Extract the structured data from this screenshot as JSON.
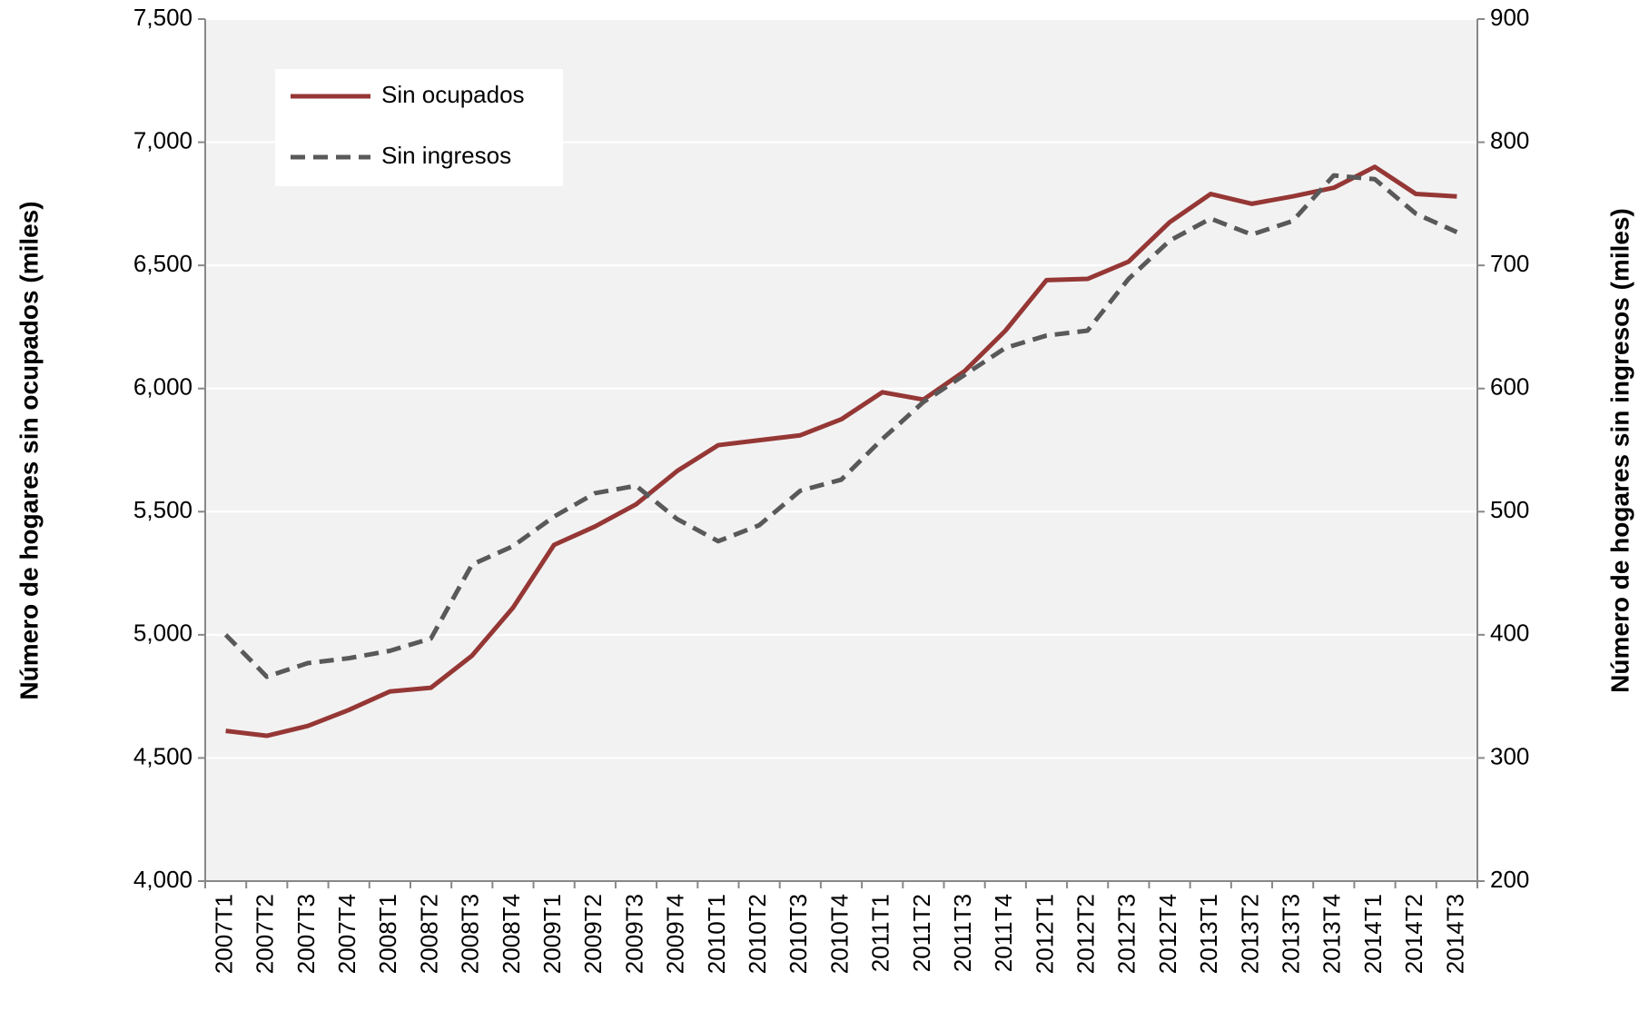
{
  "chart_data": {
    "type": "line",
    "categories": [
      "2007T1",
      "2007T2",
      "2007T3",
      "2007T4",
      "2008T1",
      "2008T2",
      "2008T3",
      "2008T4",
      "2009T1",
      "2009T2",
      "2009T3",
      "2009T4",
      "2010T1",
      "2010T2",
      "2010T3",
      "2010T4",
      "2011T1",
      "2011T2",
      "2011T3",
      "2011T4",
      "2012T1",
      "2012T2",
      "2012T3",
      "2012T4",
      "2013T1",
      "2013T2",
      "2013T3",
      "2013T4",
      "2014T1",
      "2014T2",
      "2014T3"
    ],
    "series": [
      {
        "name": "Sin ocupados",
        "color": "#953735",
        "dash": false,
        "values": [
          4610,
          4590,
          4630,
          4695,
          4770,
          4785,
          4915,
          5110,
          5365,
          5440,
          5530,
          5665,
          5770,
          5790,
          5810,
          5875,
          5985,
          5955,
          6070,
          6235,
          6440,
          6445,
          6515,
          6675,
          6790,
          6750,
          6780,
          6815,
          6900,
          6790,
          6780
        ]
      },
      {
        "name": "Sin ingresos",
        "color": "#595959",
        "dash": true,
        "axis": "y2",
        "values": [
          400,
          366,
          377,
          381,
          387,
          397,
          457,
          472,
          496,
          515,
          521,
          494,
          476,
          489,
          517,
          526,
          559,
          589,
          611,
          633,
          643,
          647,
          689,
          720,
          738,
          725,
          736,
          773,
          770,
          742,
          727
        ]
      }
    ],
    "ylabel": "Número de hogares sin ocupados  (miles)",
    "y2label": "Número de hogares sin ingresos (miles)",
    "ylim": [
      4000,
      7500
    ],
    "yticks": [
      {
        "value": 4000,
        "label": "4,000"
      },
      {
        "value": 4500,
        "label": "4,500"
      },
      {
        "value": 5000,
        "label": "5,000"
      },
      {
        "value": 5500,
        "label": "5,500"
      },
      {
        "value": 6000,
        "label": "6,000"
      },
      {
        "value": 6500,
        "label": "6,500"
      },
      {
        "value": 7000,
        "label": "7,000"
      },
      {
        "value": 7500,
        "label": "7,500"
      }
    ],
    "y2lim": [
      200,
      900
    ],
    "y2ticks": [
      200,
      300,
      400,
      500,
      600,
      700,
      800,
      900
    ],
    "grid": true,
    "legend": "upper left"
  }
}
